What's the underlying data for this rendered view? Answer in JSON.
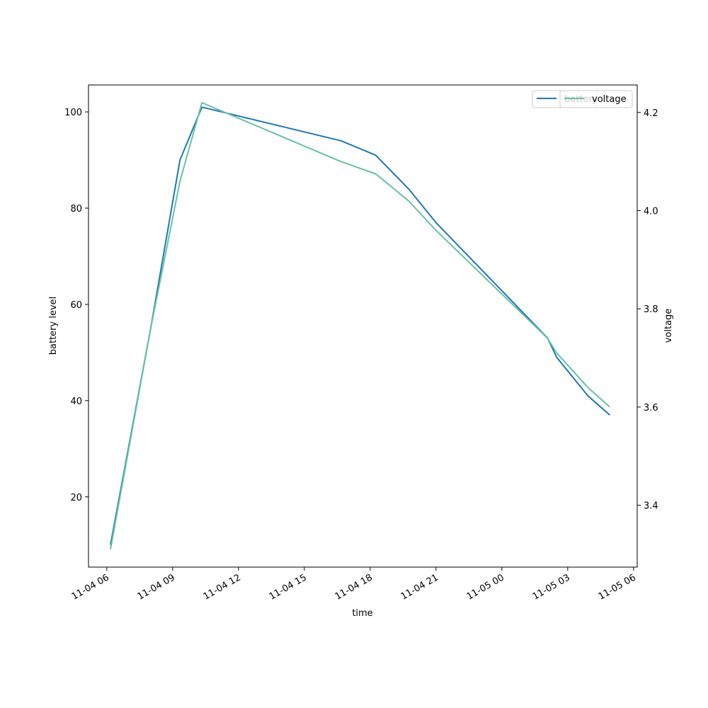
{
  "chart_data": {
    "type": "line",
    "title": "",
    "xlabel": "time",
    "ylabel_left": "battery level",
    "ylabel_right": "voltage",
    "x_ticks": [
      "11-04 06",
      "11-04 09",
      "11-04 12",
      "11-04 15",
      "11-04 18",
      "11-04 21",
      "11-05 00",
      "11-05 03",
      "11-05 06"
    ],
    "left_ticks": [
      "20",
      "40",
      "60",
      "80",
      "100"
    ],
    "right_ticks": [
      "3.4",
      "3.6",
      "3.8",
      "4.0",
      "4.2"
    ],
    "left_ylim": [
      5.4,
      105.6
    ],
    "right_ylim": [
      3.274,
      4.256
    ],
    "xlim": [
      "2023-11-04 05:10",
      "2023-11-05 06:10"
    ],
    "grid": false,
    "legend_placement": "top-right",
    "series": [
      {
        "name": "battery",
        "axis": "left",
        "color": "#1f77b4",
        "x": [
          "2023-11-04 06:10",
          "2023-11-04 08:00",
          "2023-11-04 09:20",
          "2023-11-04 10:20",
          "2023-11-04 16:40",
          "2023-11-04 18:15",
          "2023-11-04 19:45",
          "2023-11-04 21:00",
          "2023-11-05 02:05",
          "2023-11-05 02:30",
          "2023-11-05 03:55",
          "2023-11-05 04:55"
        ],
        "y": [
          10,
          55,
          90,
          101,
          94,
          91,
          84,
          77,
          53,
          49,
          41,
          37
        ]
      },
      {
        "name": "voltage",
        "axis": "right",
        "color": "#66c2a5",
        "x": [
          "2023-11-04 06:10",
          "2023-11-04 08:00",
          "2023-11-04 09:20",
          "2023-11-04 10:20",
          "2023-11-04 16:40",
          "2023-11-04 18:15",
          "2023-11-04 19:45",
          "2023-11-04 21:00",
          "2023-11-05 02:05",
          "2023-11-05 02:30",
          "2023-11-05 03:55",
          "2023-11-05 04:55"
        ],
        "y": [
          3.31,
          3.76,
          4.06,
          4.22,
          4.1,
          4.075,
          4.02,
          3.96,
          3.74,
          3.71,
          3.64,
          3.6
        ]
      }
    ],
    "legends": [
      {
        "entries": [
          "battery"
        ]
      },
      {
        "entries": [
          "voltage"
        ]
      }
    ]
  }
}
